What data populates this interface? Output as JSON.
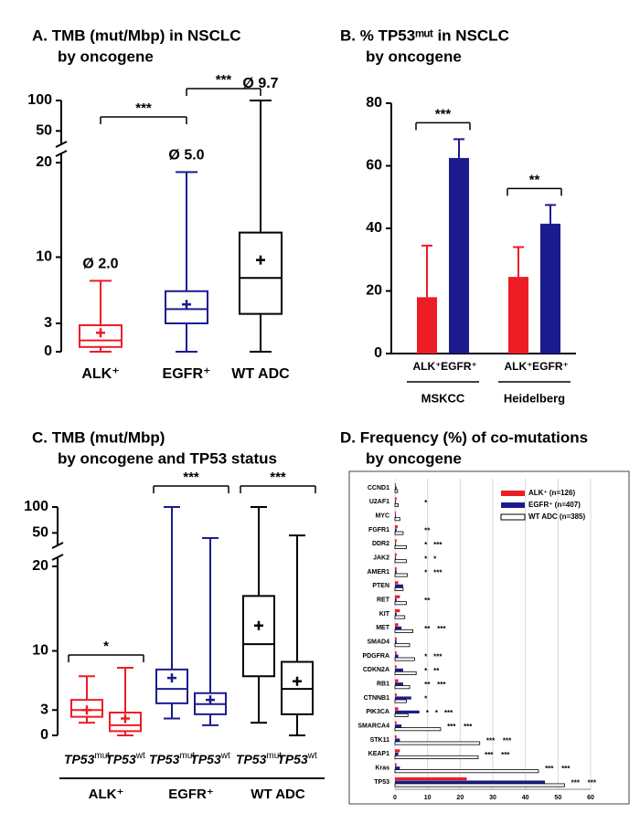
{
  "chart_data": [
    {
      "type": "box",
      "title": [
        "A.  TMB (mut/Mbp) in NSCLC",
        "by oncogene"
      ],
      "categories": [
        "ALK⁺",
        "EGFR⁺",
        "WT ADC"
      ],
      "colors": [
        "#ee1c25",
        "#1b1b8f",
        "#000000"
      ],
      "boxes": [
        {
          "whislo": 0,
          "q1": 0.5,
          "med": 1.2,
          "q3": 2.8,
          "whishi": 7.5,
          "mean": 2.0
        },
        {
          "whislo": 0,
          "q1": 3,
          "med": 4.5,
          "q3": 6.4,
          "whishi": 19,
          "mean": 5.0
        },
        {
          "whislo": 0,
          "q1": 4,
          "med": 7.8,
          "q3": 12.6,
          "whishi": 100,
          "mean": 9.7
        }
      ],
      "mean_labels": [
        "Ø 2.0",
        "Ø 5.0",
        "Ø 9.7"
      ],
      "ylim": [
        0,
        100
      ],
      "axis_break": [
        20,
        40
      ],
      "yticks": [
        0,
        3,
        10,
        20,
        50,
        100
      ],
      "significance": [
        {
          "between": [
            0,
            1
          ],
          "label": "***"
        },
        {
          "between": [
            1,
            2
          ],
          "label": "***"
        }
      ]
    },
    {
      "type": "bar",
      "title": [
        "B.  % TP53ᵐᵘᵗ in NSCLC",
        "by oncogene"
      ],
      "categories": [
        "MSKCC",
        "Heidelberg"
      ],
      "series": [
        {
          "name": "ALK⁺",
          "color": "#ee1c25",
          "values": [
            18,
            24.5
          ],
          "errors": [
            16.5,
            9.5
          ]
        },
        {
          "name": "EGFR⁺",
          "color": "#1b1b8f",
          "values": [
            62.5,
            41.5
          ],
          "errors": [
            6,
            6
          ]
        }
      ],
      "ylim": [
        0,
        80
      ],
      "yticks": [
        0,
        20,
        40,
        60,
        80
      ],
      "significance": [
        "***",
        "**"
      ]
    },
    {
      "type": "box",
      "title": [
        "C.  TMB (mut/Mbp)",
        "by oncogene and TP53 status"
      ],
      "categories": [
        {
          "gene": "TP53",
          "status": "mut"
        },
        {
          "gene": "TP53",
          "status": "wt"
        },
        {
          "gene": "TP53",
          "status": "mut"
        },
        {
          "gene": "TP53",
          "status": "wt"
        },
        {
          "gene": "TP53",
          "status": "mut"
        },
        {
          "gene": "TP53",
          "status": "wt"
        }
      ],
      "colors": [
        "#ee1c25",
        "#ee1c25",
        "#1b1b8f",
        "#1b1b8f",
        "#000000",
        "#000000"
      ],
      "boxes": [
        {
          "whislo": 1.5,
          "q1": 2.2,
          "med": 3,
          "q3": 4.2,
          "whishi": 7,
          "mean": 3
        },
        {
          "whislo": 0,
          "q1": 0.5,
          "med": 1.2,
          "q3": 2.7,
          "whishi": 8,
          "mean": 2
        },
        {
          "whislo": 2,
          "q1": 3.8,
          "med": 5.5,
          "q3": 7.8,
          "whishi": 100,
          "mean": 6.8
        },
        {
          "whislo": 1.2,
          "q1": 2.5,
          "med": 3.7,
          "q3": 5,
          "whishi": 40,
          "mean": 4.2
        },
        {
          "whislo": 1.5,
          "q1": 7,
          "med": 10.8,
          "q3": 16.5,
          "whishi": 100,
          "mean": 13
        },
        {
          "whislo": 0,
          "q1": 2.5,
          "med": 5.5,
          "q3": 8.7,
          "whishi": 45,
          "mean": 6.4
        }
      ],
      "groups": [
        {
          "label": "ALK⁺",
          "members": [
            0,
            1
          ]
        },
        {
          "label": "EGFR⁺",
          "members": [
            2,
            3
          ]
        },
        {
          "label": "WT ADC",
          "members": [
            4,
            5
          ]
        }
      ],
      "ylim": [
        0,
        100
      ],
      "axis_break": [
        20,
        40
      ],
      "yticks": [
        0,
        3,
        10,
        20,
        50,
        100
      ],
      "significance": [
        {
          "between": [
            0,
            1
          ],
          "label": "*"
        },
        {
          "between": [
            2,
            3
          ],
          "label": "***"
        },
        {
          "between": [
            4,
            5
          ],
          "label": "***"
        }
      ]
    },
    {
      "type": "hbar",
      "title": [
        "D.  Frequency (%) of co-mutations",
        "by oncogene"
      ],
      "categories": [
        "CCND1",
        "U2AF1",
        "MYC",
        "FGFR1",
        "DDR2",
        "JAK2",
        "AMER1",
        "PTEN",
        "RET",
        "KIT",
        "MET",
        "SMAD4",
        "PDGFRA",
        "CDKN2A",
        "RB1",
        "CTNNB1",
        "PIK3CA",
        "SMARCA4",
        "STK11",
        "KEAP1",
        "Kras",
        "TP53"
      ],
      "series": [
        {
          "name": "ALK⁺  (n=126)",
          "color": "#ee1c25",
          "values": [
            0.3,
            0.5,
            0.3,
            0.8,
            0.5,
            0.5,
            0.5,
            1.0,
            1.5,
            1.5,
            1.0,
            0.5,
            0.5,
            0.5,
            1.0,
            0.5,
            1.0,
            0.5,
            0.5,
            1.5,
            0.5,
            22
          ]
        },
        {
          "name": "EGFR⁺ (n=407)",
          "color": "#1b1b8f",
          "values": [
            0.5,
            0.3,
            0.3,
            0.5,
            0.3,
            0.3,
            0.5,
            2.5,
            0.5,
            0.5,
            2.0,
            0.5,
            1.0,
            2.5,
            2.5,
            5.0,
            7.5,
            2.0,
            1.5,
            1.0,
            1.5,
            46
          ]
        },
        {
          "name": "WT ADC (n=385)",
          "color": "#ffffff",
          "edgecolor": "#000000",
          "values": [
            0.8,
            1.0,
            1.5,
            2.5,
            3.5,
            3.5,
            3.8,
            2.5,
            3.5,
            3.0,
            5.5,
            4.5,
            6.0,
            6.5,
            4.5,
            3.5,
            4.0,
            14,
            26,
            25.5,
            44,
            52
          ]
        }
      ],
      "xlim": [
        0,
        60
      ],
      "xticks": [
        0,
        10,
        20,
        30,
        40,
        50,
        60
      ],
      "grid": true,
      "legend": "upper right",
      "stars": [
        [],
        [
          {
            "label": "*",
            "color": "#1b1b8f"
          }
        ],
        [],
        [
          {
            "label": "**",
            "color": "#1b1b8f"
          }
        ],
        [
          {
            "label": "*",
            "color": "#ee1c25"
          },
          {
            "label": "***",
            "color": "#1b1b8f"
          }
        ],
        [
          {
            "label": "*",
            "color": "#ee1c25"
          },
          {
            "label": "*",
            "color": "#1b1b8f"
          }
        ],
        [
          {
            "label": "*",
            "color": "#ee1c25"
          },
          {
            "label": "***",
            "color": "#1b1b8f"
          }
        ],
        [],
        [
          {
            "label": "**",
            "color": "#1b1b8f"
          }
        ],
        [],
        [
          {
            "label": "**",
            "color": "#ee1c25"
          },
          {
            "label": "***",
            "color": "#1b1b8f"
          }
        ],
        [],
        [
          {
            "label": "*",
            "color": "#ee1c25"
          },
          {
            "label": "***",
            "color": "#1b1b8f"
          }
        ],
        [
          {
            "label": "*",
            "color": "#ee1c25"
          },
          {
            "label": "**",
            "color": "#1b1b8f"
          }
        ],
        [
          {
            "label": "**",
            "color": "#ee1c25"
          },
          {
            "label": "***",
            "color": "#ee1c25"
          }
        ],
        [
          {
            "label": "*",
            "color": "#1b1b8f"
          }
        ],
        [
          {
            "label": "*",
            "color": "#ee1c25"
          },
          {
            "label": "*",
            "color": "#1b1b8f"
          },
          {
            "label": "***",
            "color": "#ee1c25"
          }
        ],
        [
          {
            "label": "***",
            "color": "#ee1c25"
          },
          {
            "label": "***",
            "color": "#1b1b8f"
          }
        ],
        [
          {
            "label": "***",
            "color": "#ee1c25"
          },
          {
            "label": "***",
            "color": "#1b1b8f"
          }
        ],
        [
          {
            "label": "***",
            "color": "#ee1c25"
          },
          {
            "label": "***",
            "color": "#1b1b8f"
          }
        ],
        [
          {
            "label": "***",
            "color": "#ee1c25"
          },
          {
            "label": "***",
            "color": "#1b1b8f"
          }
        ],
        [
          {
            "label": "***",
            "color": "#ee1c25"
          },
          {
            "label": "***",
            "color": "#ee1c25"
          }
        ]
      ]
    }
  ]
}
